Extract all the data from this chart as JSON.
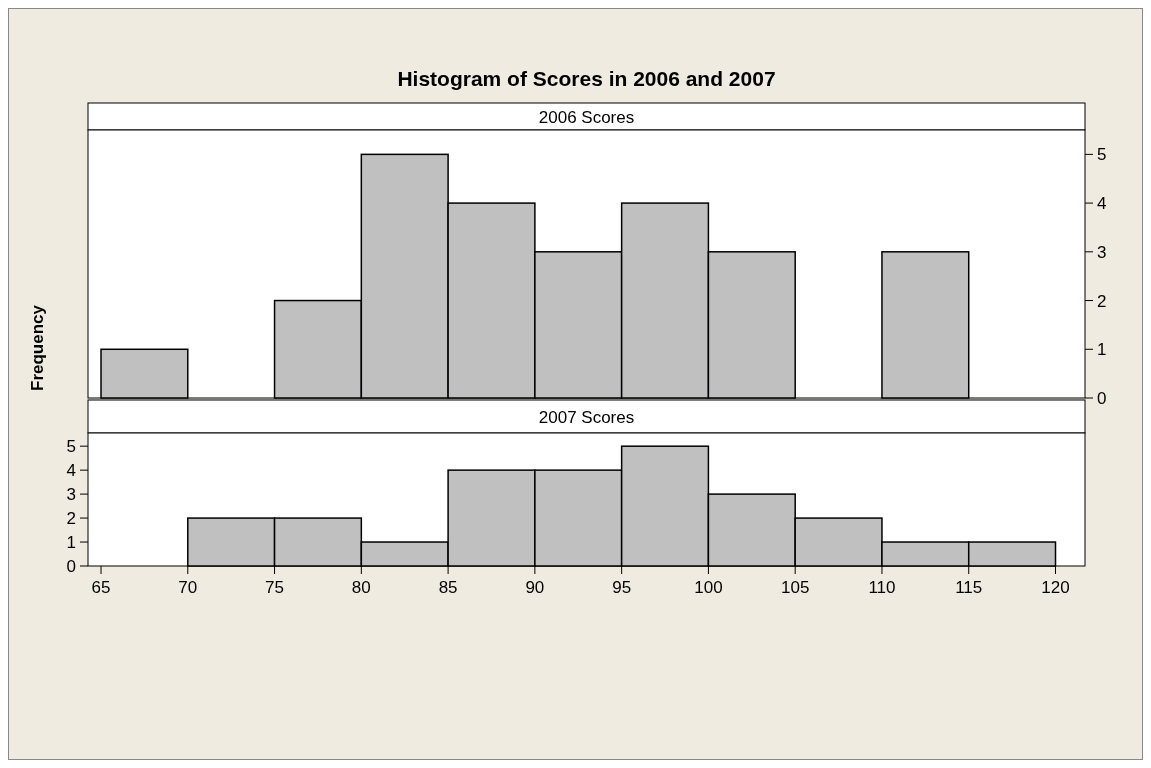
{
  "chart_data": [
    {
      "type": "histogram",
      "title": "Histogram of Scores in 2006 and 2007",
      "subtitle": "2006 Scores",
      "bins": [
        65,
        70,
        75,
        80,
        85,
        90,
        95,
        100,
        105,
        110,
        115,
        120
      ],
      "values": [
        1,
        0,
        2,
        5,
        4,
        3,
        4,
        3,
        0,
        3,
        0
      ],
      "color": "#c0c0c0",
      "xlim": [
        64.25,
        121.7
      ],
      "ylim": [
        0,
        5.5
      ],
      "yticks": [
        0,
        1,
        2,
        3,
        4,
        5
      ],
      "tick_labels": "y"
    },
    {
      "type": "histogram",
      "subtitle": "2007 Scores",
      "ylabel": "Frequency",
      "bins": [
        65,
        70,
        75,
        80,
        85,
        90,
        95,
        100,
        105,
        110,
        115,
        120
      ],
      "values": [
        0,
        2,
        2,
        1,
        4,
        4,
        5,
        3,
        2,
        1,
        1
      ],
      "color": "#c0c0c0",
      "xlim": [
        64.25,
        121.7
      ],
      "ylim": [
        0,
        5.55
      ],
      "yticks": [
        0,
        1,
        2,
        3,
        4,
        5
      ],
      "xticks": [
        65,
        70,
        75,
        80,
        85,
        90,
        95,
        100,
        105,
        110,
        115,
        120
      ]
    }
  ]
}
